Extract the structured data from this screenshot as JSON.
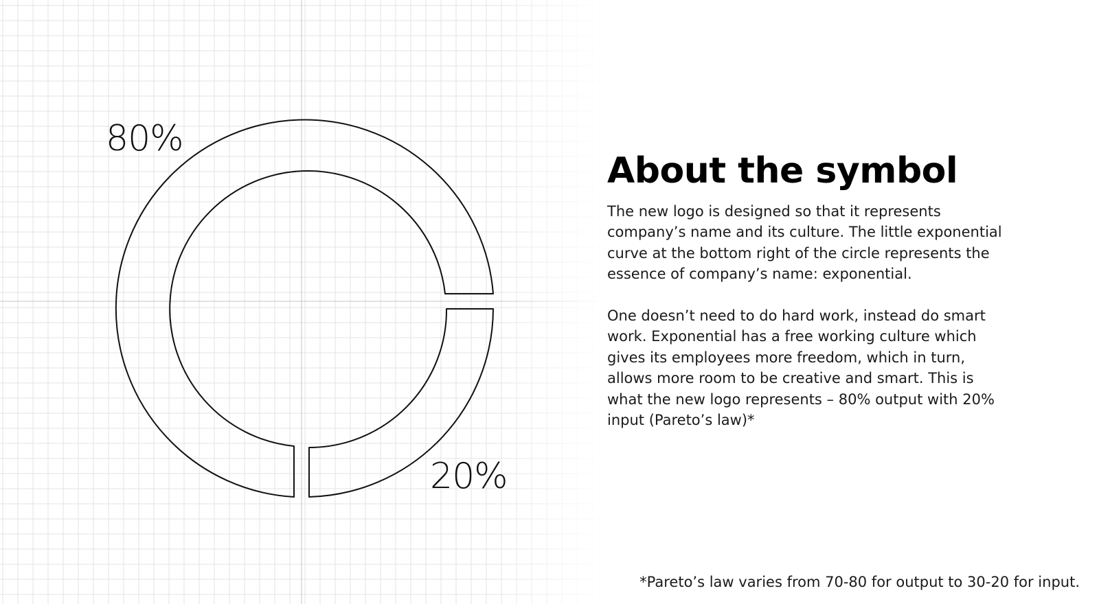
{
  "diagram": {
    "label_80": "80%",
    "label_20": "20%",
    "stroke_color": "#111111",
    "grid_color": "#e3e3e3",
    "axis_color": "#cfcfcf"
  },
  "about": {
    "title": "About the symbol",
    "paragraph1": "The new logo is designed so that it represents company’s name and its culture. The little exponential curve at the bottom right of the circle represents the essence of company’s name: exponential.",
    "paragraph2": "One doesn’t need to do hard work, instead do smart work. Exponential has a free working culture which gives its employees more freedom, which in turn, allows more room to be creative and smart. This is what the new logo represents – 80% output with 20% input (Pareto’s law)*"
  },
  "footnote": "*Pareto’s law varies from 70-80 for output to 30-20 for input."
}
